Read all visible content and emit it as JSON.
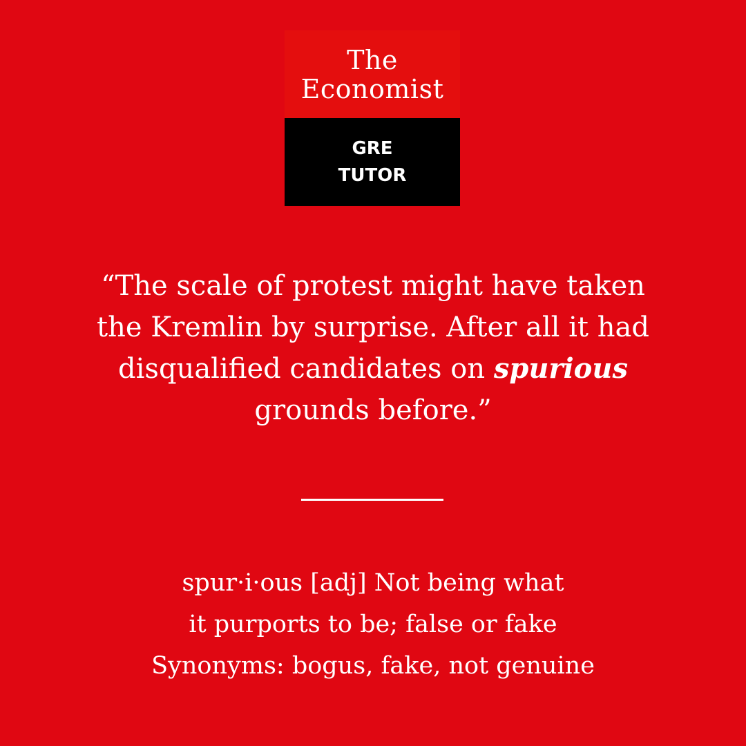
{
  "colors": {
    "background": "#e00712",
    "logo_top": "#e40e0e",
    "logo_bottom": "#000000",
    "text": "#ffffff"
  },
  "logo": {
    "line1": "The",
    "line2": "Economist",
    "label_line1": "GRE",
    "label_line2": "TUTOR"
  },
  "quote": {
    "open_quote": "“",
    "text_before": "The scale of protest might have taken the Kremlin by surprise. After all it had disqualified candidates on ",
    "keyword": "spurious",
    "text_after": " grounds before.",
    "close_quote": "”"
  },
  "definition": {
    "line1": "spur·i·ous [adj] Not being what",
    "line2": "it purports to be; false or fake",
    "line3": "Synonyms: bogus, fake, not genuine"
  }
}
